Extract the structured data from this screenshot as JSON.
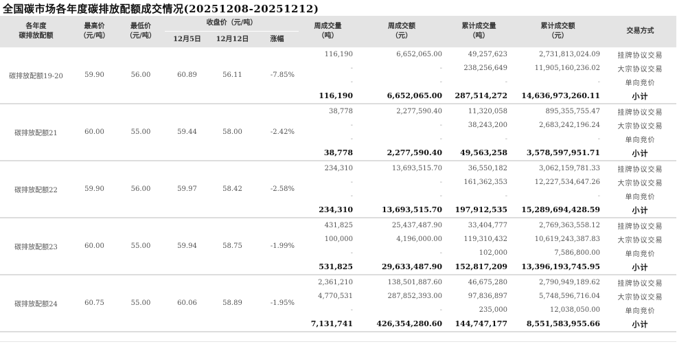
{
  "title": "全国碳市场各年度碳排放配额成交情况(20251208-20251212)",
  "headers": {
    "name": [
      "各年度",
      "碳排放配额"
    ],
    "high": [
      "最高价",
      "（元/吨）"
    ],
    "low": [
      "最低价",
      "（元/吨）"
    ],
    "close": "收盘价（元/吨）",
    "close_sub": [
      "12月5日",
      "12月12日",
      "涨幅"
    ],
    "week_vol": [
      "周成交量",
      "（吨）"
    ],
    "week_amt": [
      "周成交额",
      "（元）"
    ],
    "cum_vol": [
      "累计成交量",
      "（吨）"
    ],
    "cum_amt": [
      "累计成交额",
      "（元）"
    ],
    "mode": "交易方式"
  },
  "groups": [
    {
      "name": "碳排放配额19-20",
      "high": "59.90",
      "low": "56.00",
      "close_prev": "60.89",
      "close_cur": "56.11",
      "change": "-7.85%",
      "rows": [
        {
          "week_vol": "116,190",
          "week_amt": "6,652,065.00",
          "cum_vol": "49,257,623",
          "cum_amt": "2,731,813,024.09",
          "mode": "挂牌协议交易"
        },
        {
          "week_vol": "-",
          "week_amt": "-",
          "cum_vol": "238,256,649",
          "cum_amt": "11,905,160,236.02",
          "mode": "大宗协议交易"
        },
        {
          "week_vol": "-",
          "week_amt": "-",
          "cum_vol": "-",
          "cum_amt": "-",
          "mode": "单向竞价"
        },
        {
          "week_vol": "116,190",
          "week_amt": "6,652,065.00",
          "cum_vol": "287,514,272",
          "cum_amt": "14,636,973,260.11",
          "mode": "小计"
        }
      ]
    },
    {
      "name": "碳排放配额21",
      "high": "60.00",
      "low": "55.00",
      "close_prev": "59.44",
      "close_cur": "58.00",
      "change": "-2.42%",
      "rows": [
        {
          "week_vol": "38,778",
          "week_amt": "2,277,590.40",
          "cum_vol": "11,320,058",
          "cum_amt": "895,355,755.47",
          "mode": "挂牌协议交易"
        },
        {
          "week_vol": "-",
          "week_amt": "-",
          "cum_vol": "38,243,200",
          "cum_amt": "2,683,242,196.24",
          "mode": "大宗协议交易"
        },
        {
          "week_vol": "-",
          "week_amt": "-",
          "cum_vol": "-",
          "cum_amt": "-",
          "mode": "单向竞价"
        },
        {
          "week_vol": "38,778",
          "week_amt": "2,277,590.40",
          "cum_vol": "49,563,258",
          "cum_amt": "3,578,597,951.71",
          "mode": "小计"
        }
      ]
    },
    {
      "name": "碳排放配额22",
      "high": "59.90",
      "low": "56.00",
      "close_prev": "59.97",
      "close_cur": "58.42",
      "change": "-2.58%",
      "rows": [
        {
          "week_vol": "234,310",
          "week_amt": "13,693,515.70",
          "cum_vol": "36,550,182",
          "cum_amt": "3,062,159,781.33",
          "mode": "挂牌协议交易"
        },
        {
          "week_vol": "-",
          "week_amt": "-",
          "cum_vol": "161,362,353",
          "cum_amt": "12,227,534,647.26",
          "mode": "大宗协议交易"
        },
        {
          "week_vol": "-",
          "week_amt": "-",
          "cum_vol": "-",
          "cum_amt": "-",
          "mode": "单向竞价"
        },
        {
          "week_vol": "234,310",
          "week_amt": "13,693,515.70",
          "cum_vol": "197,912,535",
          "cum_amt": "15,289,694,428.59",
          "mode": "小计"
        }
      ]
    },
    {
      "name": "碳排放配额23",
      "high": "60.00",
      "low": "55.00",
      "close_prev": "59.94",
      "close_cur": "58.75",
      "change": "-1.99%",
      "rows": [
        {
          "week_vol": "431,825",
          "week_amt": "25,437,487.90",
          "cum_vol": "33,404,777",
          "cum_amt": "2,769,363,558.12",
          "mode": "挂牌协议交易"
        },
        {
          "week_vol": "100,000",
          "week_amt": "4,196,000.00",
          "cum_vol": "119,310,432",
          "cum_amt": "10,619,243,387.83",
          "mode": "大宗协议交易"
        },
        {
          "week_vol": "-",
          "week_amt": "-",
          "cum_vol": "102,000",
          "cum_amt": "7,586,800.00",
          "mode": "单向竞价"
        },
        {
          "week_vol": "531,825",
          "week_amt": "29,633,487.90",
          "cum_vol": "152,817,209",
          "cum_amt": "13,396,193,745.95",
          "mode": "小计"
        }
      ]
    },
    {
      "name": "碳排放配额24",
      "high": "60.75",
      "low": "55.00",
      "close_prev": "60.06",
      "close_cur": "58.89",
      "change": "-1.95%",
      "rows": [
        {
          "week_vol": "2,361,210",
          "week_amt": "138,501,887.60",
          "cum_vol": "46,675,280",
          "cum_amt": "2,790,949,189.62",
          "mode": "挂牌协议交易"
        },
        {
          "week_vol": "4,770,531",
          "week_amt": "287,852,393.00",
          "cum_vol": "97,836,897",
          "cum_amt": "5,748,596,716.04",
          "mode": "大宗协议交易"
        },
        {
          "week_vol": "-",
          "week_amt": "-",
          "cum_vol": "235,000",
          "cum_amt": "12,038,050.00",
          "mode": "单向竞价"
        },
        {
          "week_vol": "7,131,741",
          "week_amt": "426,354,280.60",
          "cum_vol": "144,747,177",
          "cum_amt": "8,551,583,955.66",
          "mode": "小计"
        }
      ]
    }
  ]
}
